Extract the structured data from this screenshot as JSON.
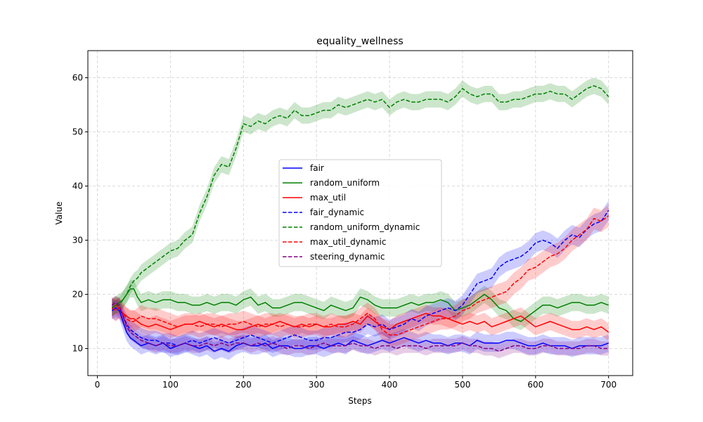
{
  "chart_data": {
    "type": "line",
    "title": "equality_wellness",
    "xlabel": "Steps",
    "ylabel": "Value",
    "xlim": [
      -13,
      733
    ],
    "ylim": [
      5,
      65
    ],
    "xticks": [
      0,
      100,
      200,
      300,
      400,
      500,
      600,
      700
    ],
    "yticks": [
      10,
      20,
      30,
      40,
      50,
      60
    ],
    "grid": true,
    "legend_position": "center",
    "series": [
      {
        "name": "fair",
        "color": "#0000ff",
        "style": "solid",
        "band": 1.6,
        "x": [
          20,
          25,
          30,
          35,
          40,
          45,
          50,
          55,
          60,
          70,
          80,
          90,
          100,
          110,
          120,
          130,
          140,
          150,
          160,
          170,
          180,
          190,
          200,
          210,
          220,
          230,
          240,
          250,
          260,
          270,
          280,
          290,
          300,
          310,
          320,
          330,
          340,
          350,
          360,
          370,
          380,
          390,
          400,
          410,
          420,
          430,
          440,
          450,
          460,
          470,
          480,
          490,
          500,
          510,
          520,
          530,
          540,
          550,
          560,
          570,
          580,
          590,
          600,
          610,
          620,
          630,
          640,
          650,
          660,
          670,
          680,
          690,
          700
        ],
        "y": [
          17,
          17.5,
          17,
          15,
          13,
          12,
          11.5,
          11,
          10.5,
          11,
          10.5,
          11,
          10,
          10.5,
          11,
          10.5,
          10,
          10.5,
          9.5,
          10,
          9.5,
          10.5,
          11,
          10.5,
          10.5,
          11,
          10,
          10.5,
          10.5,
          10,
          10,
          10.5,
          10.5,
          10,
          10.5,
          11,
          10.5,
          11.5,
          11,
          10.5,
          11,
          11.5,
          11,
          11.5,
          12,
          11.5,
          11,
          11.5,
          11,
          11,
          10.5,
          11,
          11,
          10.5,
          11.5,
          11,
          11,
          11,
          11.5,
          11.5,
          11,
          10.5,
          10.5,
          11,
          10.5,
          10.5,
          10.5,
          10,
          10.5,
          10.5,
          10.5,
          10.5,
          11
        ]
      },
      {
        "name": "random_uniform",
        "color": "#008000",
        "style": "solid",
        "band": 1.6,
        "x": [
          20,
          25,
          30,
          35,
          40,
          45,
          50,
          55,
          60,
          70,
          80,
          90,
          100,
          110,
          120,
          130,
          140,
          150,
          160,
          170,
          180,
          190,
          200,
          210,
          220,
          230,
          240,
          250,
          260,
          270,
          280,
          290,
          300,
          310,
          320,
          330,
          340,
          350,
          360,
          370,
          380,
          390,
          400,
          410,
          420,
          430,
          440,
          450,
          460,
          470,
          480,
          490,
          500,
          510,
          520,
          530,
          540,
          550,
          560,
          570,
          580,
          590,
          600,
          610,
          620,
          630,
          640,
          650,
          660,
          670,
          680,
          690,
          700
        ],
        "y": [
          17.5,
          18,
          18.5,
          19,
          20,
          21,
          21,
          19.5,
          18.5,
          19,
          18.5,
          19,
          19,
          18.5,
          18.5,
          18,
          18,
          18.5,
          18,
          18.5,
          18.5,
          18,
          19,
          19.5,
          18,
          18.5,
          17.5,
          17.5,
          18,
          18.5,
          18.5,
          18,
          17.5,
          17,
          18,
          17.5,
          17,
          17.5,
          19.5,
          19,
          18,
          17.5,
          17.5,
          17.5,
          18,
          18.5,
          18,
          18.5,
          18.5,
          19,
          18.5,
          17,
          17.5,
          18,
          19,
          20,
          19,
          17.5,
          17,
          15.5,
          15,
          16,
          17,
          18,
          18,
          17.5,
          18,
          18.5,
          18.5,
          18,
          18,
          18.5,
          18
        ]
      },
      {
        "name": "max_util",
        "color": "#ff0000",
        "style": "solid",
        "band": 1.6,
        "x": [
          20,
          25,
          30,
          35,
          40,
          45,
          50,
          55,
          60,
          70,
          80,
          90,
          100,
          110,
          120,
          130,
          140,
          150,
          160,
          170,
          180,
          190,
          200,
          210,
          220,
          230,
          240,
          250,
          260,
          270,
          280,
          290,
          300,
          310,
          320,
          330,
          340,
          350,
          360,
          370,
          380,
          390,
          400,
          410,
          420,
          430,
          440,
          450,
          460,
          470,
          480,
          490,
          500,
          510,
          520,
          530,
          540,
          550,
          560,
          570,
          580,
          590,
          600,
          610,
          620,
          630,
          640,
          650,
          660,
          670,
          680,
          690,
          700
        ],
        "y": [
          17.5,
          18,
          17.5,
          16.5,
          16,
          15.5,
          15.5,
          15,
          14.5,
          14,
          14.5,
          14,
          13.5,
          14,
          14.5,
          14.5,
          15,
          14.5,
          14,
          14.5,
          14,
          13.5,
          13.5,
          14,
          14.5,
          14,
          14.5,
          15,
          14.5,
          14,
          14.5,
          14,
          14.5,
          14,
          14,
          14.5,
          14.5,
          15,
          14.5,
          16,
          15,
          14,
          13.5,
          14.5,
          15,
          15.5,
          16,
          16.5,
          16,
          16,
          15.5,
          15,
          14.5,
          15,
          14.5,
          15,
          14,
          14.5,
          15,
          15.5,
          16,
          15,
          14,
          14.5,
          15,
          14.5,
          14,
          13.5,
          13.5,
          14,
          13.5,
          14,
          13
        ]
      },
      {
        "name": "fair_dynamic",
        "color": "#0000ff",
        "style": "dashed",
        "band": 1.8,
        "x": [
          20,
          25,
          30,
          35,
          40,
          45,
          50,
          55,
          60,
          70,
          80,
          90,
          100,
          110,
          120,
          130,
          140,
          150,
          160,
          170,
          180,
          190,
          200,
          210,
          220,
          230,
          240,
          250,
          260,
          270,
          280,
          290,
          300,
          310,
          320,
          330,
          340,
          350,
          360,
          370,
          380,
          390,
          400,
          410,
          420,
          430,
          440,
          450,
          460,
          470,
          480,
          490,
          500,
          510,
          520,
          530,
          540,
          550,
          560,
          570,
          580,
          590,
          600,
          610,
          620,
          630,
          640,
          650,
          660,
          670,
          680,
          690,
          700
        ],
        "y": [
          17.5,
          17,
          17.5,
          16,
          14.5,
          13.5,
          13,
          12.5,
          12,
          11.5,
          11.5,
          11,
          11,
          10.5,
          11,
          11.5,
          11,
          11.5,
          12,
          11.5,
          11,
          11.5,
          12,
          12.5,
          12,
          11.5,
          11,
          11.5,
          12,
          12.5,
          12,
          11.5,
          11.5,
          12,
          12,
          12.5,
          13,
          13,
          13.5,
          14.5,
          14,
          14.5,
          13.5,
          14,
          14.5,
          15.5,
          15,
          16,
          16.5,
          17,
          17.5,
          17,
          18,
          20,
          22,
          22.5,
          23,
          25,
          26,
          26.5,
          27,
          28,
          29.5,
          30,
          29.5,
          28.5,
          30,
          31,
          30.5,
          32,
          33,
          33.5,
          35.5
        ]
      },
      {
        "name": "random_uniform_dynamic",
        "color": "#008000",
        "style": "dashed",
        "band": 1.5,
        "x": [
          20,
          25,
          30,
          35,
          40,
          45,
          50,
          55,
          60,
          70,
          80,
          90,
          100,
          110,
          120,
          130,
          140,
          150,
          160,
          170,
          180,
          190,
          200,
          210,
          220,
          230,
          240,
          250,
          260,
          270,
          280,
          290,
          300,
          310,
          320,
          330,
          340,
          350,
          360,
          370,
          380,
          390,
          400,
          410,
          420,
          430,
          440,
          450,
          460,
          470,
          480,
          490,
          500,
          510,
          520,
          530,
          540,
          550,
          560,
          570,
          580,
          590,
          600,
          610,
          620,
          630,
          640,
          650,
          660,
          670,
          680,
          690,
          700
        ],
        "y": [
          17.5,
          18,
          18,
          19,
          20,
          21.5,
          22.5,
          23,
          24,
          25,
          26,
          27,
          28,
          28.5,
          30,
          31,
          35,
          38,
          42,
          44,
          43.5,
          47,
          51.5,
          51,
          52,
          51.5,
          52.5,
          53,
          52.5,
          54,
          53,
          53,
          53.5,
          54,
          54,
          55,
          54.5,
          55,
          55.5,
          56,
          55.5,
          56,
          54.5,
          55.5,
          56,
          55.5,
          55.5,
          56,
          56,
          56,
          55.5,
          56.5,
          58,
          57,
          56.5,
          57,
          57,
          55.5,
          55.5,
          56,
          56,
          56.5,
          57,
          57,
          57.5,
          57,
          57,
          56,
          57,
          58,
          58.5,
          58,
          56.5
        ]
      },
      {
        "name": "max_util_dynamic",
        "color": "#ff0000",
        "style": "dashed",
        "band": 2.0,
        "x": [
          20,
          25,
          30,
          35,
          40,
          45,
          50,
          55,
          60,
          70,
          80,
          90,
          100,
          110,
          120,
          130,
          140,
          150,
          160,
          170,
          180,
          190,
          200,
          210,
          220,
          230,
          240,
          250,
          260,
          270,
          280,
          290,
          300,
          310,
          320,
          330,
          340,
          350,
          360,
          370,
          380,
          390,
          400,
          410,
          420,
          430,
          440,
          450,
          460,
          470,
          480,
          490,
          500,
          510,
          520,
          530,
          540,
          550,
          560,
          570,
          580,
          590,
          600,
          610,
          620,
          630,
          640,
          650,
          660,
          670,
          680,
          690,
          700
        ],
        "y": [
          17.5,
          17,
          17.5,
          16.5,
          15.5,
          15,
          15,
          15.5,
          16,
          15.5,
          15.5,
          15,
          14.5,
          14,
          14.5,
          14.5,
          14,
          14.5,
          14.5,
          14,
          14.5,
          14.5,
          15,
          14.5,
          14,
          14.5,
          14.5,
          14,
          14.5,
          14,
          14,
          14.5,
          14.5,
          14,
          14.5,
          14,
          14,
          14.5,
          15.5,
          16.5,
          15.5,
          13.5,
          12.5,
          12.5,
          13,
          13.5,
          14,
          14.5,
          15,
          15.5,
          15.5,
          16,
          17,
          17.5,
          18.5,
          19,
          19.5,
          20,
          20.5,
          22,
          23,
          24.5,
          25,
          26,
          27,
          27.5,
          28.5,
          30,
          31,
          32,
          34,
          33.5,
          34.5
        ]
      },
      {
        "name": "steering_dynamic",
        "color": "#800080",
        "style": "dashed",
        "band": 1.3,
        "x": [
          20,
          25,
          30,
          35,
          40,
          45,
          50,
          55,
          60,
          70,
          80,
          90,
          100,
          110,
          120,
          130,
          140,
          150,
          160,
          170,
          180,
          190,
          200,
          210,
          220,
          230,
          240,
          250,
          260,
          270,
          280,
          290,
          300,
          310,
          320,
          330,
          340,
          350,
          360,
          370,
          380,
          390,
          400,
          410,
          420,
          430,
          440,
          450,
          460,
          470,
          480,
          490,
          500,
          510,
          520,
          530,
          540,
          550,
          560,
          570,
          580,
          590,
          600,
          610,
          620,
          630,
          640,
          650,
          660,
          670,
          680,
          690,
          700
        ],
        "y": [
          18,
          18.5,
          18,
          16,
          14,
          13,
          12.5,
          12,
          11.5,
          11,
          10.5,
          11,
          10.5,
          10.5,
          11,
          10.5,
          10.5,
          11,
          10.5,
          11,
          10.5,
          11,
          11,
          10.5,
          11,
          10.5,
          11,
          10.5,
          10,
          10.5,
          10.5,
          10,
          10.5,
          11,
          10.5,
          10.5,
          10.5,
          11,
          10.5,
          10.5,
          10,
          10.5,
          10.5,
          10,
          10.5,
          10.5,
          10.5,
          10,
          10.5,
          10.5,
          10.5,
          10.5,
          11,
          10.5,
          10.5,
          10,
          10,
          9.5,
          10,
          10.5,
          10.5,
          10,
          10,
          10.5,
          10.5,
          10,
          10,
          10,
          10,
          10.5,
          10.5,
          10,
          10
        ]
      }
    ]
  }
}
